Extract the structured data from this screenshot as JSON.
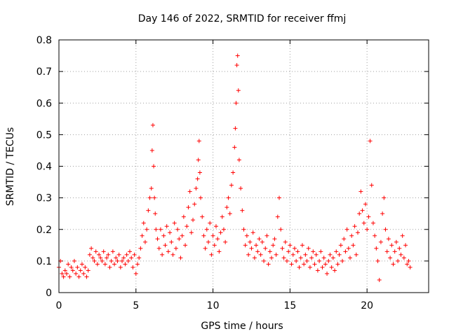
{
  "chart_data": {
    "type": "scatter",
    "title": "Day 146 of 2022, SRMTID for receiver ffmj",
    "xlabel": "GPS time / hours",
    "ylabel": "SRMTID / TECUs",
    "xlim": [
      0,
      24
    ],
    "ylim": [
      0,
      0.8
    ],
    "xticks": [
      0,
      5,
      10,
      15,
      20
    ],
    "xtick_labels": [
      "0",
      "5",
      "10",
      "15",
      "20"
    ],
    "yticks": [
      0,
      0.1,
      0.2,
      0.3,
      0.4,
      0.5,
      0.6,
      0.7,
      0.8
    ],
    "ytick_labels": [
      "0",
      "0.1",
      "0.2",
      "0.3",
      "0.4",
      "0.5",
      "0.6",
      "0.7",
      "0.8"
    ],
    "grid": true,
    "marker": "plus",
    "series": [
      {
        "name": "SRMTID",
        "color": "#ff0000",
        "x": [
          0.0,
          0.1,
          0.2,
          0.3,
          0.4,
          0.5,
          0.6,
          0.7,
          0.8,
          0.9,
          1.0,
          1.1,
          1.2,
          1.3,
          1.4,
          1.5,
          1.6,
          1.7,
          1.8,
          1.9,
          2.0,
          2.1,
          2.2,
          2.3,
          2.4,
          2.5,
          2.6,
          2.7,
          2.8,
          2.9,
          3.0,
          3.1,
          3.2,
          3.3,
          3.4,
          3.5,
          3.6,
          3.7,
          3.8,
          3.9,
          4.0,
          4.1,
          4.2,
          4.3,
          4.4,
          4.5,
          4.6,
          4.7,
          4.8,
          4.9,
          5.0,
          5.1,
          5.2,
          5.3,
          5.4,
          5.5,
          5.6,
          5.7,
          5.8,
          5.9,
          6.0,
          6.05,
          6.1,
          6.15,
          6.2,
          6.25,
          6.3,
          6.4,
          6.5,
          6.6,
          6.7,
          6.8,
          6.9,
          7.0,
          7.1,
          7.2,
          7.3,
          7.4,
          7.5,
          7.6,
          7.7,
          7.8,
          7.9,
          8.0,
          8.1,
          8.2,
          8.3,
          8.4,
          8.5,
          8.6,
          8.7,
          8.8,
          8.9,
          9.0,
          9.05,
          9.1,
          9.15,
          9.2,
          9.3,
          9.4,
          9.5,
          9.6,
          9.7,
          9.8,
          9.9,
          10.0,
          10.1,
          10.2,
          10.3,
          10.4,
          10.5,
          10.6,
          10.7,
          10.8,
          10.9,
          11.0,
          11.1,
          11.2,
          11.3,
          11.4,
          11.45,
          11.5,
          11.55,
          11.6,
          11.65,
          11.7,
          11.8,
          11.9,
          12.0,
          12.1,
          12.2,
          12.3,
          12.4,
          12.5,
          12.6,
          12.7,
          12.8,
          12.9,
          13.0,
          13.1,
          13.2,
          13.3,
          13.4,
          13.5,
          13.6,
          13.7,
          13.8,
          13.9,
          14.0,
          14.1,
          14.2,
          14.3,
          14.4,
          14.5,
          14.6,
          14.7,
          14.8,
          14.9,
          15.0,
          15.1,
          15.2,
          15.3,
          15.4,
          15.5,
          15.6,
          15.7,
          15.8,
          15.9,
          16.0,
          16.1,
          16.2,
          16.3,
          16.4,
          16.5,
          16.6,
          16.7,
          16.8,
          16.9,
          17.0,
          17.1,
          17.2,
          17.3,
          17.4,
          17.5,
          17.6,
          17.7,
          17.8,
          17.9,
          18.0,
          18.1,
          18.2,
          18.3,
          18.4,
          18.5,
          18.6,
          18.7,
          18.8,
          18.9,
          19.0,
          19.1,
          19.2,
          19.3,
          19.4,
          19.5,
          19.6,
          19.7,
          19.8,
          19.9,
          20.0,
          20.1,
          20.2,
          20.3,
          20.4,
          20.5,
          20.6,
          20.7,
          20.8,
          20.9,
          21.0,
          21.1,
          21.2,
          21.3,
          21.4,
          21.5,
          21.6,
          21.7,
          21.8,
          21.9,
          22.0,
          22.1,
          22.2,
          22.3,
          22.4,
          22.5,
          22.6,
          22.7,
          22.8
        ],
        "y": [
          0.08,
          0.1,
          0.06,
          0.05,
          0.07,
          0.06,
          0.09,
          0.05,
          0.08,
          0.07,
          0.1,
          0.06,
          0.08,
          0.05,
          0.07,
          0.09,
          0.06,
          0.08,
          0.05,
          0.07,
          0.12,
          0.14,
          0.11,
          0.1,
          0.13,
          0.09,
          0.12,
          0.11,
          0.1,
          0.13,
          0.09,
          0.11,
          0.12,
          0.08,
          0.1,
          0.13,
          0.09,
          0.11,
          0.1,
          0.12,
          0.08,
          0.1,
          0.11,
          0.09,
          0.12,
          0.1,
          0.13,
          0.11,
          0.08,
          0.12,
          0.06,
          0.09,
          0.11,
          0.14,
          0.18,
          0.22,
          0.16,
          0.2,
          0.26,
          0.3,
          0.33,
          0.45,
          0.53,
          0.4,
          0.3,
          0.25,
          0.2,
          0.17,
          0.14,
          0.2,
          0.12,
          0.18,
          0.15,
          0.21,
          0.13,
          0.19,
          0.16,
          0.12,
          0.22,
          0.14,
          0.2,
          0.17,
          0.11,
          0.18,
          0.24,
          0.15,
          0.21,
          0.27,
          0.32,
          0.19,
          0.23,
          0.28,
          0.33,
          0.36,
          0.42,
          0.48,
          0.38,
          0.3,
          0.24,
          0.18,
          0.14,
          0.2,
          0.16,
          0.22,
          0.12,
          0.18,
          0.15,
          0.21,
          0.17,
          0.13,
          0.19,
          0.24,
          0.2,
          0.16,
          0.27,
          0.3,
          0.25,
          0.34,
          0.38,
          0.46,
          0.52,
          0.6,
          0.72,
          0.75,
          0.64,
          0.42,
          0.33,
          0.26,
          0.2,
          0.15,
          0.18,
          0.12,
          0.16,
          0.14,
          0.19,
          0.11,
          0.15,
          0.13,
          0.17,
          0.12,
          0.16,
          0.1,
          0.14,
          0.18,
          0.09,
          0.13,
          0.11,
          0.15,
          0.17,
          0.12,
          0.24,
          0.3,
          0.2,
          0.14,
          0.11,
          0.16,
          0.1,
          0.13,
          0.15,
          0.09,
          0.12,
          0.14,
          0.1,
          0.13,
          0.08,
          0.11,
          0.15,
          0.09,
          0.12,
          0.1,
          0.14,
          0.08,
          0.11,
          0.13,
          0.09,
          0.12,
          0.07,
          0.1,
          0.13,
          0.08,
          0.11,
          0.09,
          0.06,
          0.1,
          0.12,
          0.08,
          0.11,
          0.07,
          0.13,
          0.09,
          0.12,
          0.15,
          0.1,
          0.17,
          0.13,
          0.2,
          0.14,
          0.11,
          0.18,
          0.15,
          0.21,
          0.12,
          0.19,
          0.25,
          0.32,
          0.26,
          0.22,
          0.28,
          0.2,
          0.24,
          0.48,
          0.34,
          0.22,
          0.18,
          0.14,
          0.1,
          0.04,
          0.16,
          0.25,
          0.3,
          0.2,
          0.13,
          0.17,
          0.11,
          0.15,
          0.09,
          0.13,
          0.16,
          0.1,
          0.14,
          0.12,
          0.18,
          0.11,
          0.15,
          0.09,
          0.1,
          0.08
        ]
      }
    ]
  }
}
